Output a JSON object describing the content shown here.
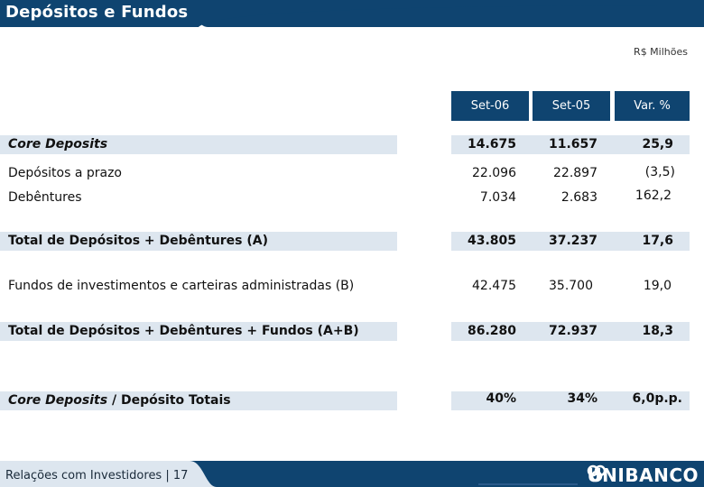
{
  "header": {
    "title": "Depósitos e Fundos"
  },
  "unit": "R$ Milhões",
  "columns": [
    "Set-06",
    "Set-05",
    "Var. %"
  ],
  "rows": [
    {
      "label": "Core Deposits",
      "values": [
        "14.675",
        "11.657",
        "25,9"
      ]
    },
    {
      "label": "Depósitos a prazo",
      "values": [
        "22.096",
        "22.897",
        "(3,5)"
      ]
    },
    {
      "label": "Debêntures",
      "values": [
        "7.034",
        "2.683",
        "162,2"
      ]
    },
    {
      "label": "Total de Depósitos + Debêntures (A)",
      "values": [
        "43.805",
        "37.237",
        "17,6"
      ]
    },
    {
      "label": "Fundos de investimentos e carteiras administradas (B)",
      "values": [
        "42.475",
        "35.700",
        "19,0"
      ]
    },
    {
      "label": "Total de Depósitos + Debêntures + Fundos (A+B)",
      "values": [
        "86.280",
        "72.937",
        "18,3"
      ]
    },
    {
      "label_italic": "Core Deposits",
      "label_rest": " / Depósito Totais",
      "values": [
        "40%",
        "34%",
        "6,0p.p."
      ]
    }
  ],
  "footer": {
    "text": "Relações com Investidores | 17",
    "logo": "UNIBANCO",
    "logo_icon": "unibanco-logo-icon"
  },
  "colors": {
    "navy": "#0f4470",
    "row_shade": "#dde6ef"
  }
}
